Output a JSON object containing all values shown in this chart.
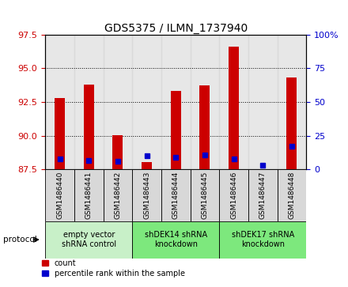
{
  "title": "GDS5375 / ILMN_1737940",
  "samples": [
    "GSM1486440",
    "GSM1486441",
    "GSM1486442",
    "GSM1486443",
    "GSM1486444",
    "GSM1486445",
    "GSM1486446",
    "GSM1486447",
    "GSM1486448"
  ],
  "red_bar_tops": [
    92.8,
    93.8,
    90.05,
    88.05,
    93.3,
    93.7,
    96.6,
    87.5,
    94.3
  ],
  "red_bar_bottom": 87.5,
  "blue_dot_values": [
    88.3,
    88.15,
    88.1,
    88.5,
    88.4,
    88.55,
    88.25,
    87.8,
    89.2
  ],
  "ylim_left": [
    87.5,
    97.5
  ],
  "yticks_left": [
    87.5,
    90.0,
    92.5,
    95.0,
    97.5
  ],
  "ylim_right": [
    0,
    100
  ],
  "yticks_right": [
    0,
    25,
    50,
    75,
    100
  ],
  "ytick_labels_right": [
    "0",
    "25",
    "50",
    "75",
    "100%"
  ],
  "groups": [
    {
      "label": "empty vector\nshRNA control",
      "start": 0,
      "end": 3,
      "color": "#c8f0c8"
    },
    {
      "label": "shDEK14 shRNA\nknockdown",
      "start": 3,
      "end": 6,
      "color": "#7de87d"
    },
    {
      "label": "shDEK17 shRNA\nknockdown",
      "start": 6,
      "end": 9,
      "color": "#7de87d"
    }
  ],
  "protocol_label": "protocol",
  "legend_red_label": "count",
  "legend_blue_label": "percentile rank within the sample",
  "red_color": "#cc0000",
  "blue_color": "#0000cc",
  "bar_width": 0.35,
  "sample_box_color": "#d8d8d8",
  "fig_width": 4.4,
  "fig_height": 3.63
}
